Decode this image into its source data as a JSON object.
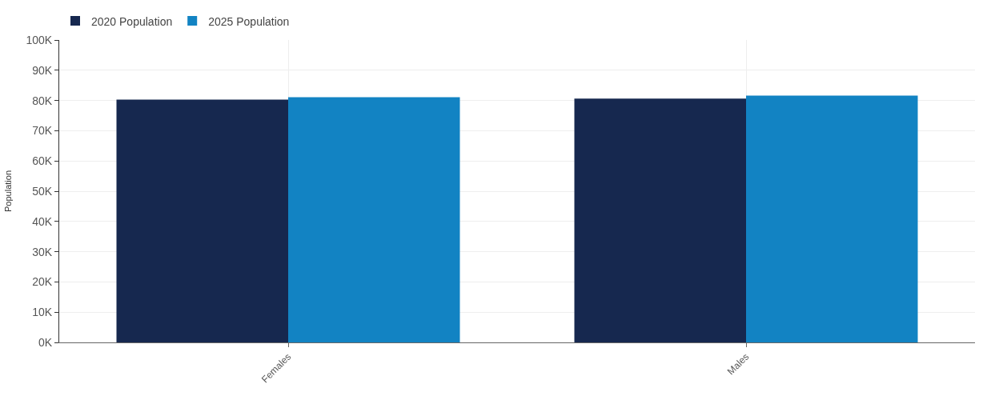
{
  "chart_data": {
    "type": "bar",
    "ylabel": "Population",
    "categories": [
      "Females",
      "Males"
    ],
    "series": [
      {
        "name": "2020 Population",
        "color": "#16284f",
        "values": [
          80300,
          80600
        ]
      },
      {
        "name": "2025 Population",
        "color": "#1283c3",
        "values": [
          81100,
          81600
        ]
      }
    ],
    "ylim": [
      0,
      100000
    ],
    "yticks": [
      {
        "value": 0,
        "label": "0K"
      },
      {
        "value": 10000,
        "label": "10K"
      },
      {
        "value": 20000,
        "label": "20K"
      },
      {
        "value": 30000,
        "label": "30K"
      },
      {
        "value": 40000,
        "label": "40K"
      },
      {
        "value": 50000,
        "label": "50K"
      },
      {
        "value": 60000,
        "label": "60K"
      },
      {
        "value": 70000,
        "label": "70K"
      },
      {
        "value": 80000,
        "label": "80K"
      },
      {
        "value": 90000,
        "label": "90K"
      },
      {
        "value": 100000,
        "label": "100K"
      }
    ],
    "grid": true,
    "legend": "top left"
  }
}
